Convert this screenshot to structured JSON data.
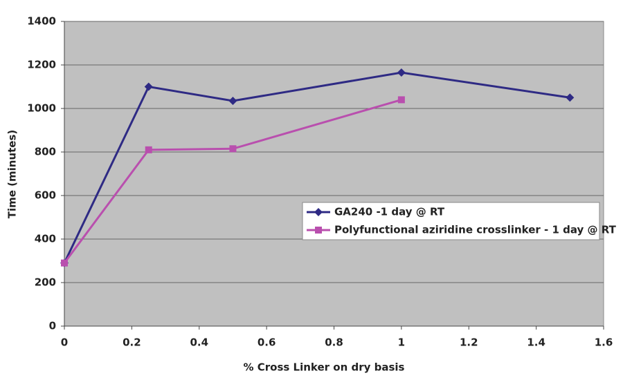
{
  "chart_data": {
    "type": "line",
    "x_label": "% Cross Linker on dry basis",
    "y_label": "Time (minutes)",
    "series": [
      {
        "name": "GA240 -1 day @ RT",
        "color": "#2e2a84",
        "marker": "diamond",
        "x": [
          0,
          0.25,
          0.5,
          1,
          1.5
        ],
        "values": [
          290,
          1100,
          1035,
          1165,
          1050
        ]
      },
      {
        "name": "Polyfunctional aziridine crosslinker - 1 day @ RT",
        "color": "#b94fae",
        "marker": "square",
        "x": [
          0,
          0.25,
          0.5,
          1
        ],
        "values": [
          290,
          810,
          815,
          1040
        ]
      }
    ],
    "xlim": [
      0,
      1.6
    ],
    "xticks": [
      0,
      0.2,
      0.4,
      0.6,
      0.8,
      1,
      1.2,
      1.4,
      1.6
    ],
    "ylim": [
      0,
      1400
    ],
    "yticks": [
      0,
      200,
      400,
      600,
      800,
      1000,
      1200,
      1400
    ],
    "grid": true,
    "legend": "center right",
    "plot_background": "#c0c0c0"
  }
}
